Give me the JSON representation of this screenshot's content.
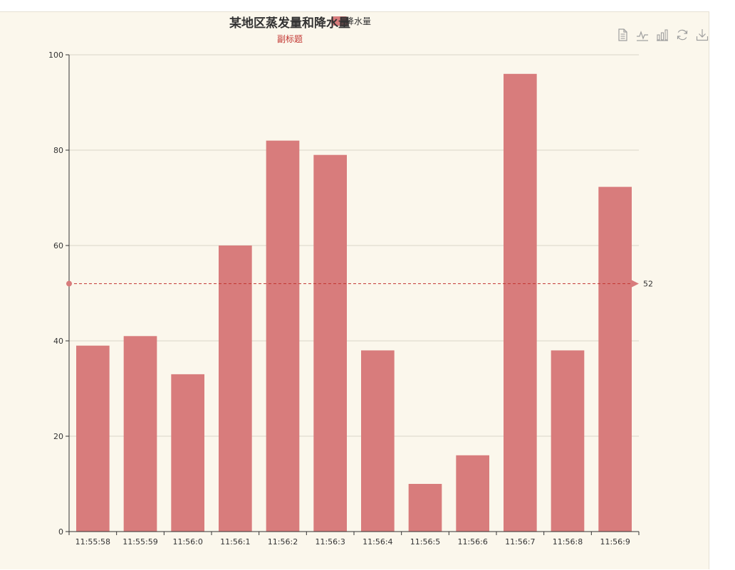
{
  "chart_data": {
    "type": "bar",
    "title": "某地区蒸发量和降水量",
    "subtitle": "副标题",
    "legend": [
      "降水量"
    ],
    "categories": [
      "11:55:58",
      "11:55:59",
      "11:56:0",
      "11:56:1",
      "11:56:2",
      "11:56:3",
      "11:56:4",
      "11:56:5",
      "11:56:6",
      "11:56:7",
      "11:56:8",
      "11:56:9"
    ],
    "series": [
      {
        "name": "降水量",
        "values": [
          39,
          41,
          33,
          60,
          82,
          79,
          38,
          10,
          16,
          96,
          38,
          72.3
        ]
      }
    ],
    "ylim": [
      0,
      100
    ],
    "yticks": [
      0,
      20,
      40,
      60,
      80,
      100
    ],
    "mark_line": {
      "value": 52,
      "label": "52"
    },
    "grid": true,
    "colors": {
      "bar": "#d87c7c",
      "title": "#333333",
      "subtitle": "#c23531",
      "axis": "#333333",
      "grid": "#d9d4c8",
      "background": "#fbf7ec"
    }
  },
  "toolbox": {
    "items": [
      {
        "id": "data-view",
        "icon": "document-icon"
      },
      {
        "id": "line-switch",
        "icon": "line-chart-icon"
      },
      {
        "id": "bar-switch",
        "icon": "bar-chart-icon"
      },
      {
        "id": "restore",
        "icon": "refresh-icon"
      },
      {
        "id": "save-image",
        "icon": "download-icon"
      }
    ]
  }
}
